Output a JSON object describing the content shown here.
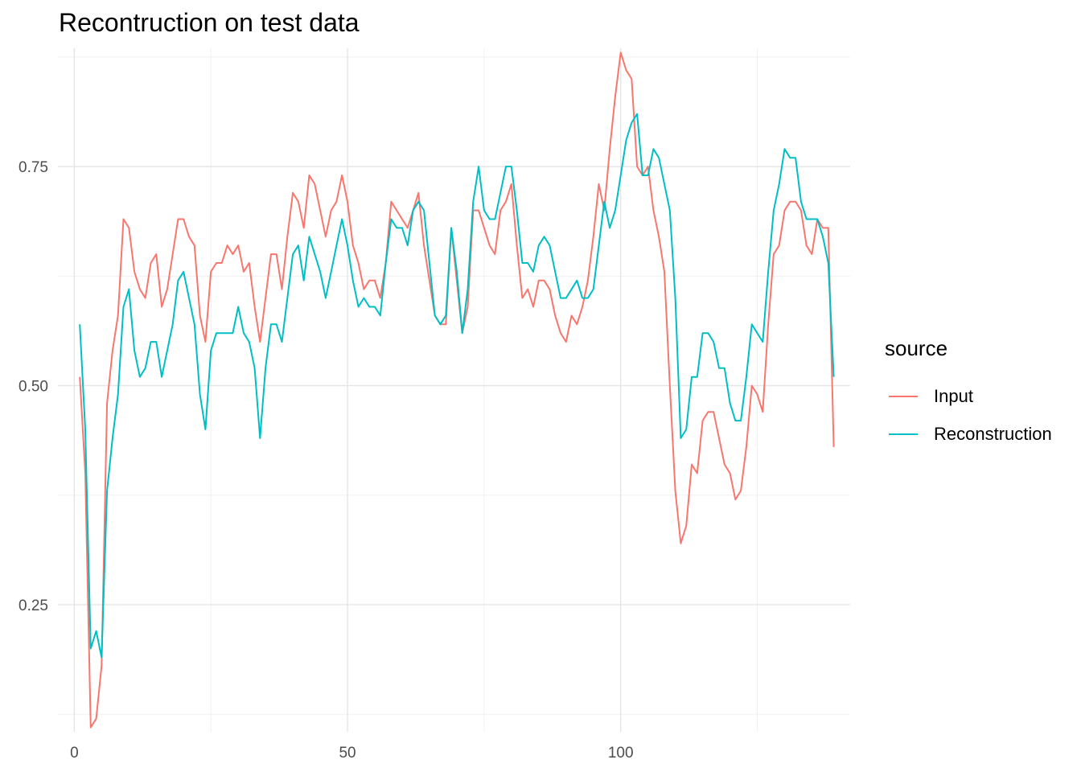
{
  "chart_data": {
    "type": "line",
    "title": "Recontruction on test data",
    "xlabel": "",
    "ylabel": "",
    "xlim": [
      -3,
      142
    ],
    "ylim": [
      0.105,
      0.885
    ],
    "x_ticks": [
      0,
      50,
      100
    ],
    "y_ticks": [
      0.25,
      0.5,
      0.75
    ],
    "grid": true,
    "legend": {
      "title": "source",
      "position": "right"
    },
    "series": [
      {
        "name": "Input",
        "color": "#F8766D",
        "x": [
          1,
          2,
          3,
          4,
          5,
          6,
          7,
          8,
          9,
          10,
          11,
          12,
          13,
          14,
          15,
          16,
          17,
          18,
          19,
          20,
          21,
          22,
          23,
          24,
          25,
          26,
          27,
          28,
          29,
          30,
          31,
          32,
          33,
          34,
          35,
          36,
          37,
          38,
          39,
          40,
          41,
          42,
          43,
          44,
          45,
          46,
          47,
          48,
          49,
          50,
          51,
          52,
          53,
          54,
          55,
          56,
          57,
          58,
          59,
          60,
          61,
          62,
          63,
          64,
          65,
          66,
          67,
          68,
          69,
          70,
          71,
          72,
          73,
          74,
          75,
          76,
          77,
          78,
          79,
          80,
          81,
          82,
          83,
          84,
          85,
          86,
          87,
          88,
          89,
          90,
          91,
          92,
          93,
          94,
          95,
          96,
          97,
          98,
          99,
          100,
          101,
          102,
          103,
          104,
          105,
          106,
          107,
          108,
          109,
          110,
          111,
          112,
          113,
          114,
          115,
          116,
          117,
          118,
          119,
          120,
          121,
          122,
          123,
          124,
          125,
          126,
          127,
          128,
          129,
          130,
          131,
          132,
          133,
          134,
          135,
          136,
          137,
          138,
          139
        ],
        "values": [
          0.51,
          0.4,
          0.11,
          0.12,
          0.18,
          0.48,
          0.54,
          0.58,
          0.69,
          0.68,
          0.63,
          0.61,
          0.6,
          0.64,
          0.65,
          0.59,
          0.61,
          0.65,
          0.69,
          0.69,
          0.67,
          0.66,
          0.58,
          0.55,
          0.63,
          0.64,
          0.64,
          0.66,
          0.65,
          0.66,
          0.63,
          0.64,
          0.59,
          0.55,
          0.6,
          0.65,
          0.65,
          0.61,
          0.67,
          0.72,
          0.71,
          0.68,
          0.74,
          0.73,
          0.7,
          0.67,
          0.7,
          0.71,
          0.74,
          0.71,
          0.66,
          0.64,
          0.61,
          0.62,
          0.62,
          0.6,
          0.64,
          0.71,
          0.7,
          0.69,
          0.68,
          0.7,
          0.72,
          0.66,
          0.62,
          0.58,
          0.57,
          0.57,
          0.68,
          0.62,
          0.56,
          0.59,
          0.7,
          0.7,
          0.68,
          0.66,
          0.65,
          0.7,
          0.71,
          0.73,
          0.66,
          0.6,
          0.61,
          0.59,
          0.62,
          0.62,
          0.61,
          0.58,
          0.56,
          0.55,
          0.58,
          0.57,
          0.59,
          0.62,
          0.67,
          0.73,
          0.7,
          0.77,
          0.83,
          0.88,
          0.86,
          0.85,
          0.75,
          0.74,
          0.75,
          0.7,
          0.67,
          0.63,
          0.5,
          0.38,
          0.32,
          0.34,
          0.41,
          0.4,
          0.46,
          0.47,
          0.47,
          0.44,
          0.41,
          0.4,
          0.37,
          0.38,
          0.43,
          0.5,
          0.49,
          0.47,
          0.57,
          0.65,
          0.66,
          0.7,
          0.71,
          0.71,
          0.7,
          0.66,
          0.65,
          0.69,
          0.68,
          0.68,
          0.43
        ]
      },
      {
        "name": "Reconstruction",
        "color": "#00BFC4",
        "x": [
          1,
          2,
          3,
          4,
          5,
          6,
          7,
          8,
          9,
          10,
          11,
          12,
          13,
          14,
          15,
          16,
          17,
          18,
          19,
          20,
          21,
          22,
          23,
          24,
          25,
          26,
          27,
          28,
          29,
          30,
          31,
          32,
          33,
          34,
          35,
          36,
          37,
          38,
          39,
          40,
          41,
          42,
          43,
          44,
          45,
          46,
          47,
          48,
          49,
          50,
          51,
          52,
          53,
          54,
          55,
          56,
          57,
          58,
          59,
          60,
          61,
          62,
          63,
          64,
          65,
          66,
          67,
          68,
          69,
          70,
          71,
          72,
          73,
          74,
          75,
          76,
          77,
          78,
          79,
          80,
          81,
          82,
          83,
          84,
          85,
          86,
          87,
          88,
          89,
          90,
          91,
          92,
          93,
          94,
          95,
          96,
          97,
          98,
          99,
          100,
          101,
          102,
          103,
          104,
          105,
          106,
          107,
          108,
          109,
          110,
          111,
          112,
          113,
          114,
          115,
          116,
          117,
          118,
          119,
          120,
          121,
          122,
          123,
          124,
          125,
          126,
          127,
          128,
          129,
          130,
          131,
          132,
          133,
          134,
          135,
          136,
          137,
          138,
          139
        ],
        "values": [
          0.57,
          0.45,
          0.2,
          0.22,
          0.19,
          0.38,
          0.44,
          0.49,
          0.59,
          0.61,
          0.54,
          0.51,
          0.52,
          0.55,
          0.55,
          0.51,
          0.54,
          0.57,
          0.62,
          0.63,
          0.6,
          0.57,
          0.49,
          0.45,
          0.54,
          0.56,
          0.56,
          0.56,
          0.56,
          0.59,
          0.56,
          0.55,
          0.52,
          0.44,
          0.52,
          0.57,
          0.57,
          0.55,
          0.6,
          0.65,
          0.66,
          0.62,
          0.67,
          0.65,
          0.63,
          0.6,
          0.63,
          0.66,
          0.69,
          0.66,
          0.62,
          0.59,
          0.6,
          0.59,
          0.59,
          0.58,
          0.64,
          0.69,
          0.68,
          0.68,
          0.66,
          0.7,
          0.71,
          0.7,
          0.64,
          0.58,
          0.57,
          0.58,
          0.68,
          0.63,
          0.56,
          0.61,
          0.71,
          0.75,
          0.7,
          0.69,
          0.69,
          0.72,
          0.75,
          0.75,
          0.7,
          0.64,
          0.64,
          0.63,
          0.66,
          0.67,
          0.66,
          0.63,
          0.6,
          0.6,
          0.61,
          0.62,
          0.6,
          0.6,
          0.61,
          0.66,
          0.71,
          0.68,
          0.7,
          0.74,
          0.78,
          0.8,
          0.81,
          0.74,
          0.74,
          0.77,
          0.76,
          0.73,
          0.7,
          0.6,
          0.44,
          0.45,
          0.51,
          0.51,
          0.56,
          0.56,
          0.55,
          0.52,
          0.52,
          0.48,
          0.46,
          0.46,
          0.51,
          0.57,
          0.56,
          0.55,
          0.63,
          0.7,
          0.73,
          0.77,
          0.76,
          0.76,
          0.71,
          0.69,
          0.69,
          0.69,
          0.67,
          0.64,
          0.51
        ]
      }
    ]
  }
}
